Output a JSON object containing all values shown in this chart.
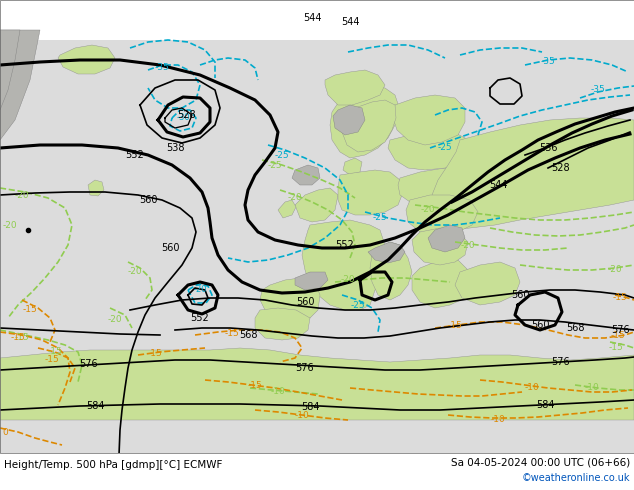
{
  "title_left": "Height/Temp. 500 hPa [gdmp][°C] ECMWF",
  "title_right": "Sa 04-05-2024 00:00 UTC (06+66)",
  "credit": "©weatheronline.co.uk",
  "col_black": "#000000",
  "col_green": "#90cc50",
  "col_cyan": "#00aacc",
  "col_orange": "#dd8800",
  "col_land_green": "#c8e096",
  "col_land_grey": "#b4b4b0",
  "col_sea": "#dcdcdc",
  "col_white": "#ffffff",
  "figsize": [
    6.34,
    4.9
  ],
  "dpi": 100
}
